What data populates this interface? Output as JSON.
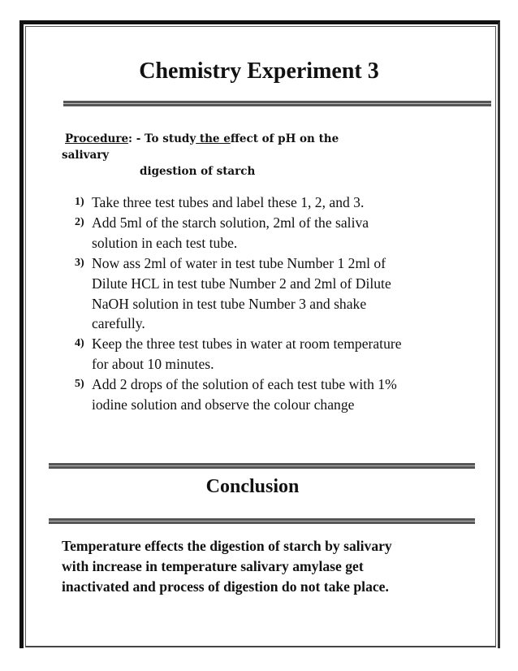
{
  "title": "Chemistry Experiment 3",
  "procedure": {
    "label": "Procedure",
    "sep": ": - To study",
    "underlined": " the e",
    "rest": "ffect of pH on the",
    "line2": "salivary",
    "line3": "digestion of starch"
  },
  "steps": [
    {
      "num": "1)",
      "lines": [
        "Take three test tubes and label these 1, 2, and 3."
      ]
    },
    {
      "num": "2)",
      "lines": [
        "Add 5ml of the starch solution, 2ml of the saliva",
        "solution in each test tube."
      ]
    },
    {
      "num": "3)",
      "lines": [
        "Now ass 2ml of water in test tube Number 1 2ml of",
        "Dilute HCL in test tube Number 2 and 2ml of Dilute",
        "NaOH solution in test tube Number 3 and shake",
        "carefully."
      ]
    },
    {
      "num": "4)",
      "lines": [
        "Keep the three test tubes in water at room temperature",
        "for about 10 minutes."
      ]
    },
    {
      "num": "5)",
      "lines": [
        "Add 2 drops of the solution of each test tube with 1%",
        "iodine solution and observe the colour change"
      ]
    }
  ],
  "conclusion": {
    "heading": "Conclusion",
    "lines": [
      "Temperature effects the digestion of starch by salivary",
      "with increase in temperature salivary amylase get",
      "inactivated and process of digestion do not take place."
    ]
  }
}
